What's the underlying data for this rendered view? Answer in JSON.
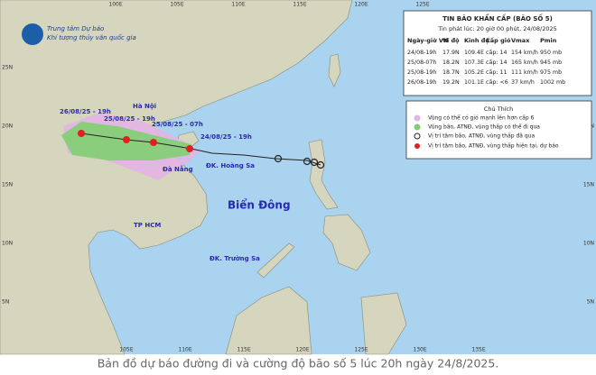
{
  "header": {
    "agency_line1": "Trung tâm Dự báo",
    "agency_line2": "Khí tượng thủy văn quốc gia"
  },
  "graticule": {
    "top": [
      "100E",
      "105E",
      "110E",
      "115E",
      "120E",
      "125E"
    ],
    "bottom": [
      "105E",
      "110E",
      "115E",
      "120E",
      "125E",
      "130E",
      "135E"
    ],
    "left": [
      "25N",
      "20N",
      "15N",
      "10N",
      "5N"
    ],
    "right": [
      "20N",
      "15N",
      "10N",
      "5N"
    ]
  },
  "bulletin": {
    "title": "TIN BÃO KHẨN CẤP (BÃO SỐ 5)",
    "issued": "Tin phát lúc: 20 giờ 00 phút, 24/08/2025",
    "columns": [
      "Ngày-giờ VN",
      "Vĩ độ",
      "Kinh độ",
      "Cấp gió",
      "Vmax",
      "Pmin"
    ],
    "rows": [
      [
        "24/08-19h",
        "17.9N",
        "109.4E",
        "cấp: 14",
        "154 km/h",
        "950 mb"
      ],
      [
        "25/08-07h",
        "18.2N",
        "107.3E",
        "cấp: 14",
        "165 km/h",
        "945 mb"
      ],
      [
        "25/08-19h",
        "18.7N",
        "105.2E",
        "cấp: 11",
        "111 km/h",
        "975 mb"
      ],
      [
        "26/08-19h",
        "19.2N",
        "101.1E",
        "cấp: <6",
        "37 km/h",
        "1002 mb"
      ]
    ]
  },
  "legend": {
    "title": "Chú Thích",
    "items": [
      "Vùng có thể có gió mạnh lên hơn cấp 6",
      "Vùng bão, ATNĐ, vùng thấp có thể đi qua",
      "Vị trí tâm bão, ATNĐ, vùng thấp đã qua",
      "Vị trí tâm bão, ATNĐ, vùng thấp hiện tại, dự báo"
    ]
  },
  "map_labels": {
    "forecast_times": [
      "26/08/25 - 19h",
      "25/08/25 - 19h",
      "25/08/25 - 07h",
      "24/08/25 - 19h"
    ],
    "places": [
      "Hà Nội",
      "Đà Nẵng",
      "ĐK. Hoàng Sa",
      "Biển Đông",
      "TP HCM",
      "ĐK. Trường Sa"
    ]
  },
  "caption": "Bản đồ dự báo đường đi và cường độ bão số 5 lúc 20h ngày 24/8/2025."
}
